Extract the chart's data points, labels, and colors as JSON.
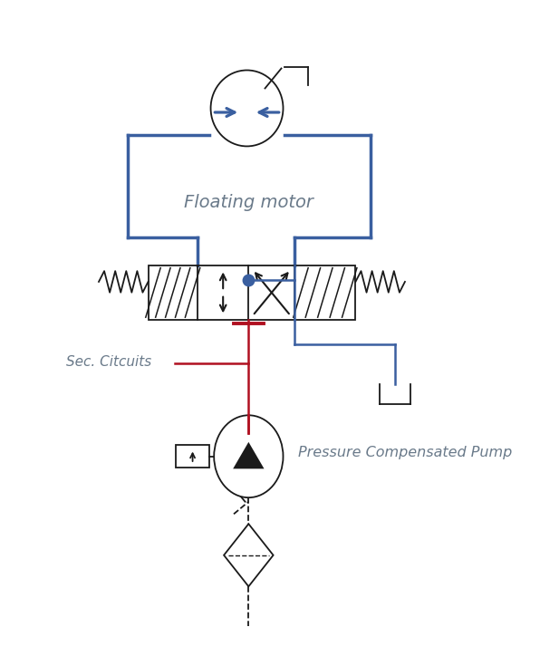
{
  "bg_color": "#ffffff",
  "blue": "#3a5fa0",
  "red": "#b01020",
  "black": "#1a1a1a",
  "gray": "#6a7a8a",
  "text_floating_motor": "Floating motor",
  "text_sec_circuits": "Sec. Citcuits",
  "text_pump": "Pressure Compensated Pump",
  "figw": 5.96,
  "figh": 7.24,
  "dpi": 100
}
